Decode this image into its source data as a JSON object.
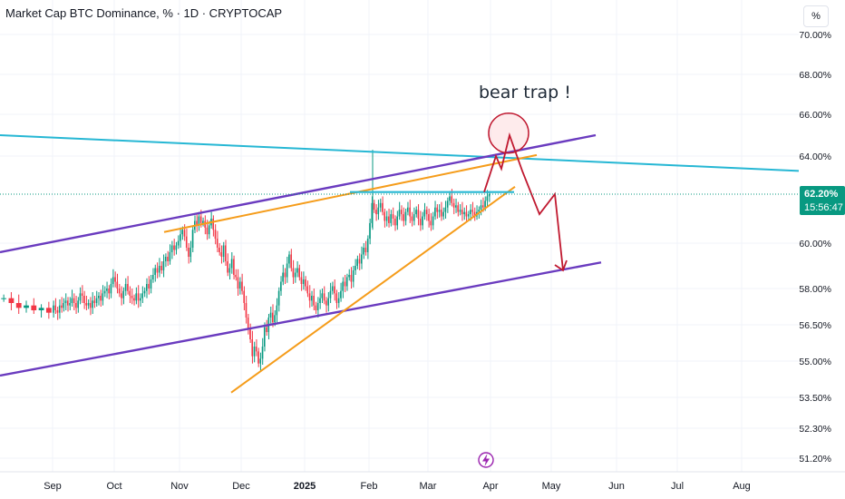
{
  "header": {
    "title": "Market Cap BTC Dominance, % · 1D · CRYPTOCAP",
    "scale_button": "%"
  },
  "colors": {
    "up": "#089981",
    "down": "#f23645",
    "channel": "#6a3bbf",
    "wedge": "#f59c1a",
    "resistance": "#26b7d4",
    "projection": "#c0182f",
    "price_tag": "#089981"
  },
  "price_tag": {
    "value": "62.20%",
    "countdown": "15:56:47"
  },
  "event_icon": "lightning-icon",
  "chart_data": {
    "type": "candlestick",
    "title": "Market Cap BTC Dominance, % · 1D · CRYPTOCAP",
    "y_unit": "%",
    "ylim": [
      50.6,
      70.4
    ],
    "y_ticks": [
      "70.00%",
      "68.00%",
      "66.00%",
      "64.00%",
      "60.00%",
      "58.00%",
      "56.50%",
      "55.00%",
      "53.50%",
      "52.30%",
      "51.20%"
    ],
    "x_ticks": [
      "Sep",
      "Oct",
      "Nov",
      "Dec",
      "2025",
      "Feb",
      "Mar",
      "Apr",
      "May",
      "Jun",
      "Jul",
      "Aug"
    ],
    "last_value": 62.2,
    "series": [
      {
        "name": "Aug 2024",
        "values": [
          57.6,
          57.4,
          57.2,
          57.3,
          57.1,
          57.2,
          57.0
        ]
      },
      {
        "name": "Sep 2024",
        "values": [
          57.3,
          57.1,
          57.0,
          57.3,
          57.2,
          57.4,
          57.5,
          57.3,
          57.4,
          57.6,
          57.4,
          57.2,
          57.5,
          57.8,
          57.7,
          57.4,
          57.3,
          57.4,
          57.2,
          57.5,
          57.4,
          57.6,
          57.7,
          57.5,
          57.8,
          57.9,
          58.0,
          57.8,
          58.2,
          58.5
        ]
      },
      {
        "name": "Oct 2024",
        "values": [
          58.3,
          58.0,
          57.8,
          57.6,
          57.9,
          58.2,
          57.9,
          57.7,
          57.6,
          57.5,
          57.8,
          57.5,
          57.6,
          57.8,
          57.9,
          58.2,
          58.0,
          58.4,
          58.6,
          58.9,
          58.7,
          59.0,
          58.8,
          59.2,
          59.4,
          59.2,
          59.6,
          59.9,
          59.7,
          59.9,
          60.1
        ]
      },
      {
        "name": "Nov 2024",
        "values": [
          60.4,
          60.6,
          60.3,
          59.8,
          59.4,
          59.8,
          60.6,
          61.0,
          60.8,
          61.2,
          60.9,
          61.0,
          60.7,
          60.4,
          60.8,
          61.1,
          60.6,
          60.2,
          59.8,
          59.6,
          59.4,
          59.9,
          59.2,
          58.7,
          58.9,
          59.3,
          58.6,
          58.5,
          58.0,
          58.3
        ]
      },
      {
        "name": "Dec 2024",
        "values": [
          57.9,
          57.4,
          56.8,
          56.3,
          55.9,
          55.2,
          55.6,
          55.4,
          54.9,
          55.1,
          55.6,
          56.4,
          56.2,
          56.8,
          57.0,
          56.6,
          56.9,
          57.3,
          57.9,
          58.3,
          58.7,
          58.5,
          59.1,
          59.5,
          58.9,
          58.5,
          58.7,
          58.9,
          58.5,
          58.2,
          58.4
        ]
      },
      {
        "name": "Jan 2025",
        "values": [
          58.1,
          57.8,
          57.5,
          57.7,
          57.3,
          57.1,
          57.4,
          57.6,
          57.8,
          57.5,
          57.3,
          57.6,
          57.9,
          58.1,
          57.8,
          57.4,
          57.6,
          57.9,
          58.3,
          58.1,
          58.5,
          58.6,
          58.3,
          58.8,
          59.0,
          59.3,
          59.1,
          59.5,
          59.8,
          59.6,
          60.2
        ]
      },
      {
        "name": "Feb 2025",
        "values": [
          60.9,
          61.8,
          61.5,
          61.3,
          61.6,
          61.8,
          61.4,
          61.0,
          61.2,
          60.9,
          61.3,
          61.1,
          60.8,
          61.2,
          61.5,
          61.3,
          61.0,
          61.4,
          61.6,
          61.2,
          61.0,
          61.3,
          61.5,
          61.1,
          60.8,
          61.2,
          61.5,
          61.3
        ]
      },
      {
        "name": "Mar 2025",
        "values": [
          61.0,
          60.8,
          61.2,
          61.6,
          61.4,
          61.5,
          61.2,
          61.4,
          61.6,
          61.9,
          62.1,
          61.8,
          61.6,
          61.7,
          61.4,
          61.5,
          61.3,
          61.4,
          61.2,
          61.3,
          61.5,
          61.4,
          61.2,
          61.4,
          61.5,
          61.7,
          61.6,
          61.9,
          62.1,
          62.2
        ]
      }
    ],
    "annotations": [
      {
        "label": "bear trap !",
        "kind": "text"
      },
      {
        "label": "upper channel line",
        "from": [
          "Aug 2024",
          59.6
        ],
        "to": [
          "May 2025",
          65.0
        ]
      },
      {
        "label": "lower channel line",
        "from": [
          "Aug 2024",
          54.4
        ],
        "to": [
          "May 2025",
          59.6
        ]
      },
      {
        "label": "long-term resistance",
        "from": [
          "Aug 2024",
          65.0
        ],
        "to": [
          "Aug 2025",
          63.3
        ]
      },
      {
        "label": "rising wedge upper",
        "from": [
          "Nov 2024",
          60.5
        ],
        "to": [
          "Apr 2025",
          64.0
        ]
      },
      {
        "label": "rising wedge lower",
        "from": [
          "Dec 2024",
          53.7
        ],
        "to": [
          "Apr 2025",
          62.4
        ]
      },
      {
        "label": "breakout level",
        "value": 62.3
      },
      {
        "label": "projected path",
        "points": [
          62.3,
          64.0,
          63.4,
          65.0,
          63.3,
          61.3,
          62.2,
          58.8
        ]
      }
    ]
  }
}
